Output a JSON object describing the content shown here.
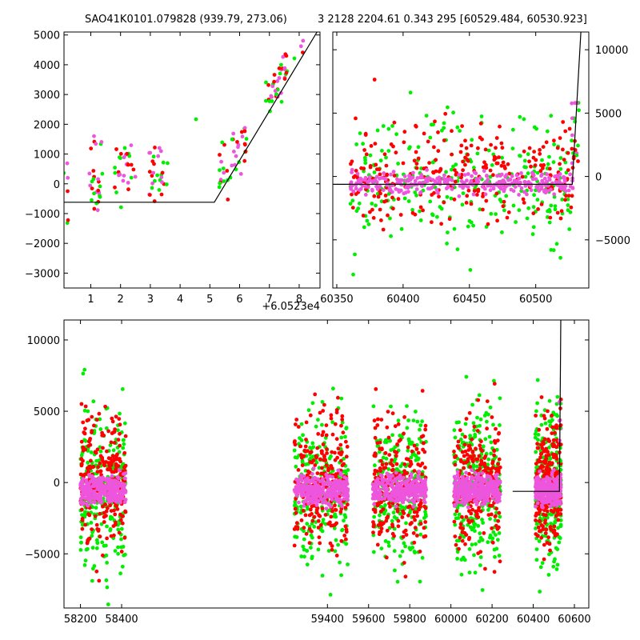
{
  "titles": {
    "left": "SAO41K0101.079828 (939.79, 273.06)",
    "right": "3 2128 2204.61 0.343 295 [60529.484, 60530.923]"
  },
  "colors": {
    "red": "#ff0000",
    "green": "#00ee00",
    "pink": "#ee55dd",
    "model": "#000000"
  },
  "chart_data": [
    {
      "type": "scatter",
      "panel": "top-left",
      "xlim": [
        0.1,
        8.7
      ],
      "ylim": [
        -3500,
        5100
      ],
      "xticks": [
        1,
        2,
        3,
        4,
        5,
        6,
        7,
        8
      ],
      "xtick_labels": [
        "1",
        "2",
        "3",
        "4",
        "5",
        "6",
        "7",
        "8"
      ],
      "yticks": [
        -3000,
        -2000,
        -1000,
        0,
        1000,
        2000,
        3000,
        4000,
        5000
      ],
      "ytick_labels": [
        "−3000",
        "−2000",
        "−1000",
        "0",
        "1000",
        "2000",
        "3000",
        "4000",
        "5000"
      ],
      "offset_label": "+6.0523e4",
      "yaxis": "left",
      "model_line": [
        [
          0.1,
          -620
        ],
        [
          5.15,
          -620
        ],
        [
          8.6,
          5100
        ]
      ],
      "clusters": [
        {
          "x": [
            0.05,
            0.3
          ],
          "y": [
            -2200,
            700
          ],
          "n": 6
        },
        {
          "x": [
            0.9,
            1.4
          ],
          "y": [
            -900,
            1750
          ],
          "n": 28
        },
        {
          "x": [
            1.8,
            2.5
          ],
          "y": [
            -800,
            1300
          ],
          "n": 30
        },
        {
          "x": [
            2.9,
            3.6
          ],
          "y": [
            -600,
            1250
          ],
          "n": 30
        },
        {
          "x": [
            4.5,
            4.55
          ],
          "y": [
            2100,
            2200
          ],
          "n": 1
        },
        {
          "x": [
            5.3,
            6.4
          ],
          "y": [
            -900,
            2100
          ],
          "n": 40
        },
        {
          "x": [
            6.8,
            7.6
          ],
          "y": [
            2000,
            4500
          ],
          "n": 40
        },
        {
          "x": [
            7.8,
            8.3
          ],
          "y": [
            4500,
            5100
          ],
          "n": 5
        }
      ]
    },
    {
      "type": "scatter",
      "panel": "top-right",
      "xlim": [
        60347,
        60540
      ],
      "ylim": [
        -8800,
        11400
      ],
      "xticks": [
        60350,
        60400,
        60450,
        60500
      ],
      "xtick_labels": [
        "60350",
        "60400",
        "60450",
        "60500"
      ],
      "yticks": [
        -5000,
        0,
        5000,
        10000
      ],
      "ytick_labels": [
        "−5000",
        "0",
        "5000",
        "10000"
      ],
      "yaxis": "right",
      "model_line": [
        [
          60347,
          -620
        ],
        [
          60527.5,
          -620
        ],
        [
          60534,
          11400
        ]
      ],
      "segment": [
        60360,
        60530
      ]
    },
    {
      "type": "scatter",
      "panel": "bottom",
      "xlim": [
        58120,
        60670
      ],
      "ylim": [
        -8800,
        11400
      ],
      "xticks": [
        58200,
        58400,
        59400,
        59600,
        59800,
        60000,
        60200,
        60400,
        60600
      ],
      "xtick_labels": [
        "58200",
        "58400",
        "59400",
        "59600",
        "59800",
        "60000",
        "60200",
        "60400",
        "60600"
      ],
      "yticks": [
        -5000,
        0,
        5000,
        10000
      ],
      "ytick_labels": [
        "−5000",
        "0",
        "5000",
        "10000"
      ],
      "yaxis": "left",
      "model_line": [
        [
          60300,
          -620
        ],
        [
          60527.5,
          -620
        ],
        [
          60534,
          11400
        ]
      ],
      "segments": [
        [
          58200,
          58420
        ],
        [
          59240,
          59500
        ],
        [
          59620,
          59880
        ],
        [
          60015,
          60240
        ],
        [
          60410,
          60535
        ]
      ]
    }
  ]
}
